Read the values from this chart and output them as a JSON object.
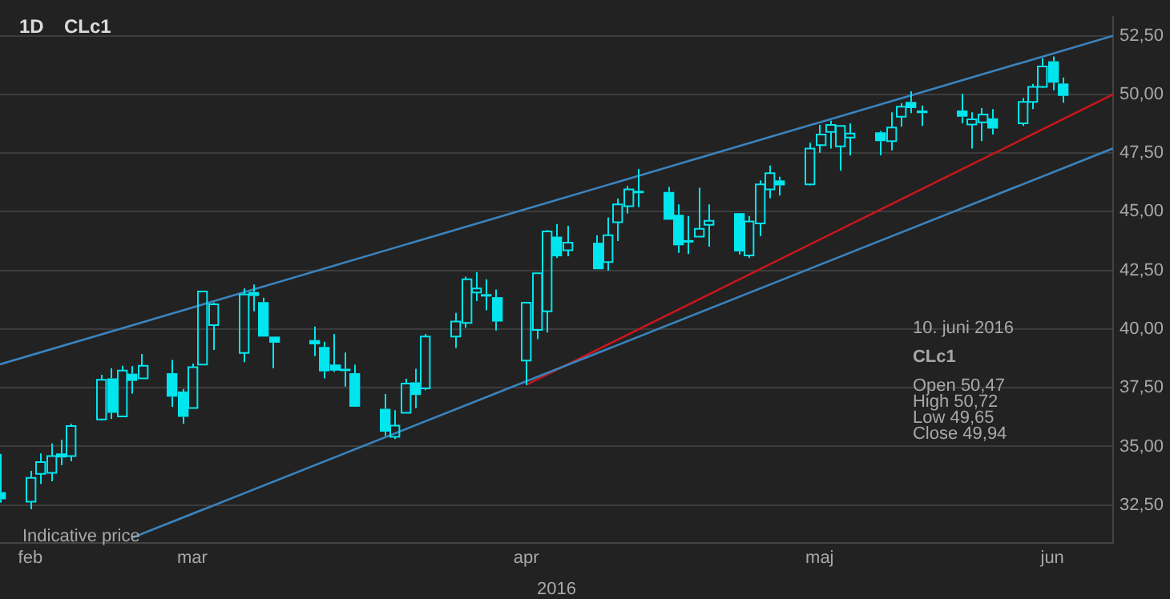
{
  "chart_data": {
    "type": "candlestick",
    "title": "CLc1",
    "subtitle": "1D",
    "xlabel": "2016",
    "annotations": [
      "Indicative price",
      "10. juni 2016",
      "CLc1",
      "Open 50,47",
      "High 50,72",
      "Low 49,65",
      "Close 49,94"
    ],
    "color": "#00e5ee",
    "x": [
      "2016-02-26",
      "2016-02-29",
      "2016-03-01",
      "2016-03-02",
      "2016-03-03",
      "2016-03-04",
      "2016-03-07",
      "2016-03-08",
      "2016-03-09",
      "2016-03-10",
      "2016-03-11",
      "2016-03-14",
      "2016-03-15",
      "2016-03-16",
      "2016-03-17",
      "2016-03-18",
      "2016-03-21",
      "2016-03-22",
      "2016-03-23",
      "2016-03-24",
      "2016-03-28",
      "2016-03-29",
      "2016-03-30",
      "2016-03-31",
      "2016-04-01",
      "2016-04-04",
      "2016-04-05",
      "2016-04-06",
      "2016-04-07",
      "2016-04-08",
      "2016-04-11",
      "2016-04-12",
      "2016-04-13",
      "2016-04-14",
      "2016-04-15",
      "2016-04-18",
      "2016-04-19",
      "2016-04-20",
      "2016-04-21",
      "2016-04-22",
      "2016-04-25",
      "2016-04-26",
      "2016-04-27",
      "2016-04-28",
      "2016-04-29",
      "2016-05-02",
      "2016-05-03",
      "2016-05-04",
      "2016-05-05",
      "2016-05-06",
      "2016-05-09",
      "2016-05-10",
      "2016-05-11",
      "2016-05-12",
      "2016-05-13",
      "2016-05-16",
      "2016-05-17",
      "2016-05-18",
      "2016-05-19",
      "2016-05-20",
      "2016-05-23",
      "2016-05-24",
      "2016-05-25",
      "2016-05-26",
      "2016-05-27",
      "2016-05-31",
      "2016-06-01",
      "2016-06-02",
      "2016-06-03",
      "2016-06-06",
      "2016-06-07",
      "2016-06-08",
      "2016-06-09",
      "2016-06-10"
    ],
    "ohlc": [
      [
        33.05,
        34.68,
        32.6,
        32.75
      ],
      [
        32.64,
        33.96,
        32.32,
        33.66
      ],
      [
        33.83,
        34.7,
        33.4,
        34.33
      ],
      [
        33.87,
        35.13,
        33.51,
        34.59
      ],
      [
        34.7,
        35.28,
        34.2,
        34.53
      ],
      [
        34.59,
        35.96,
        34.37,
        35.87
      ],
      [
        36.15,
        38.05,
        36.1,
        37.84
      ],
      [
        37.9,
        38.33,
        36.17,
        36.43
      ],
      [
        36.28,
        38.44,
        36.26,
        38.23
      ],
      [
        38.1,
        38.42,
        37.25,
        37.79
      ],
      [
        37.9,
        38.94,
        37.9,
        38.44
      ],
      [
        38.12,
        38.68,
        36.69,
        37.12
      ],
      [
        37.34,
        37.45,
        35.96,
        36.26
      ],
      [
        36.64,
        38.53,
        36.64,
        38.38
      ],
      [
        38.49,
        41.6,
        38.49,
        41.6
      ],
      [
        40.17,
        41.12,
        39.11,
        41.06
      ],
      [
        38.98,
        41.73,
        38.59,
        41.47
      ],
      [
        41.58,
        41.9,
        40.76,
        41.41
      ],
      [
        41.15,
        41.34,
        39.68,
        39.68
      ],
      [
        39.68,
        39.68,
        38.33,
        39.42
      ],
      [
        39.53,
        40.11,
        38.85,
        39.35
      ],
      [
        39.24,
        39.46,
        37.9,
        38.2
      ],
      [
        38.49,
        39.79,
        38.17,
        38.23
      ],
      [
        38.31,
        39.0,
        37.55,
        38.25
      ],
      [
        38.12,
        38.49,
        36.69,
        36.69
      ],
      [
        36.6,
        37.23,
        35.45,
        35.63
      ],
      [
        35.41,
        36.54,
        35.31,
        35.89
      ],
      [
        36.43,
        37.88,
        36.43,
        37.68
      ],
      [
        37.73,
        38.31,
        36.64,
        37.19
      ],
      [
        37.47,
        39.79,
        37.4,
        39.68
      ],
      [
        39.68,
        40.69,
        39.2,
        40.32
      ],
      [
        40.26,
        42.23,
        40.06,
        42.12
      ],
      [
        41.56,
        42.43,
        41.19,
        41.73
      ],
      [
        41.49,
        42.12,
        40.8,
        41.43
      ],
      [
        41.36,
        41.69,
        39.94,
        40.32
      ],
      [
        38.66,
        41.12,
        37.62,
        41.12
      ],
      [
        39.96,
        42.38,
        39.57,
        42.38
      ],
      [
        40.76,
        44.22,
        39.85,
        44.16
      ],
      [
        43.94,
        44.48,
        43.03,
        43.1
      ],
      [
        43.36,
        44.4,
        43.1,
        43.68
      ],
      [
        43.68,
        44.0,
        42.55,
        42.55
      ],
      [
        42.86,
        44.76,
        42.49,
        44.0
      ],
      [
        44.55,
        45.56,
        43.75,
        45.31
      ],
      [
        45.24,
        46.1,
        44.93,
        45.95
      ],
      [
        45.89,
        46.82,
        45.19,
        45.8
      ],
      [
        45.84,
        46.06,
        44.66,
        44.66
      ],
      [
        44.87,
        45.31,
        43.25,
        43.57
      ],
      [
        43.79,
        44.82,
        43.2,
        43.72
      ],
      [
        43.94,
        46.02,
        43.94,
        44.27
      ],
      [
        44.44,
        45.31,
        43.51,
        44.61
      ],
      [
        44.94,
        44.94,
        43.18,
        43.31
      ],
      [
        43.14,
        44.82,
        43.03,
        44.59
      ],
      [
        44.5,
        46.34,
        43.96,
        46.17
      ],
      [
        45.95,
        46.97,
        45.58,
        46.64
      ],
      [
        46.34,
        46.49,
        45.69,
        46.12
      ],
      [
        46.17,
        47.94,
        46.12,
        47.69
      ],
      [
        47.84,
        48.7,
        47.51,
        48.29
      ],
      [
        48.4,
        48.88,
        47.69,
        48.7
      ],
      [
        47.79,
        48.66,
        46.75,
        48.66
      ],
      [
        48.16,
        48.77,
        47.4,
        48.33
      ],
      [
        48.38,
        48.44,
        47.4,
        48.01
      ],
      [
        48.01,
        49.24,
        47.62,
        48.59
      ],
      [
        49.05,
        49.63,
        48.62,
        49.48
      ],
      [
        49.68,
        50.13,
        49.2,
        49.42
      ],
      [
        49.31,
        49.53,
        48.66,
        49.2
      ],
      [
        49.31,
        50.02,
        48.77,
        49.05
      ],
      [
        48.72,
        49.24,
        47.69,
        48.94
      ],
      [
        48.81,
        49.42,
        48.01,
        49.14
      ],
      [
        48.98,
        49.37,
        48.29,
        48.55
      ],
      [
        48.77,
        49.85,
        48.66,
        49.68
      ],
      [
        49.68,
        50.45,
        49.37,
        50.32
      ],
      [
        50.32,
        51.54,
        50.28,
        51.19
      ],
      [
        51.41,
        51.62,
        50.18,
        50.5
      ],
      [
        50.47,
        50.72,
        49.65,
        49.94
      ]
    ],
    "series": [
      {
        "type": "line",
        "color": "#3b83bd",
        "x": [
          "2016-02-26",
          "2016-06-15"
        ],
        "values": [
          38.5,
          52.5
        ]
      },
      {
        "type": "line",
        "color": "#3b83bd",
        "x": [
          "2016-03-10",
          "2016-06-15"
        ],
        "values": [
          31.1,
          47.7
        ]
      },
      {
        "type": "line",
        "color": "#c8161d",
        "x": [
          "2016-04-18",
          "2016-06-15"
        ],
        "values": [
          37.62,
          50.0
        ]
      }
    ],
    "xlim": [
      "2016-02-26",
      "2016-06-15"
    ],
    "xticks": [
      {
        "value": "2016-02-29",
        "label": "feb"
      },
      {
        "value": "2016-03-16",
        "label": "mar"
      },
      {
        "value": "2016-04-18",
        "label": "apr"
      },
      {
        "value": "2016-05-17",
        "label": "maj"
      },
      {
        "value": "2016-06-09",
        "label": "jun"
      }
    ],
    "ylim": [
      30.9,
      53.3
    ],
    "yticks": [
      {
        "value": 32.5,
        "label": "32,50"
      },
      {
        "value": 35,
        "label": "35,00"
      },
      {
        "value": 37.5,
        "label": "37,50"
      },
      {
        "value": 40,
        "label": "40,00"
      },
      {
        "value": 42.5,
        "label": "42,50"
      },
      {
        "value": 45,
        "label": "45,00"
      },
      {
        "value": 47.5,
        "label": "47,50"
      },
      {
        "value": 50,
        "label": "50,00"
      },
      {
        "value": 52.5,
        "label": "52,50"
      }
    ],
    "grid": "y"
  }
}
